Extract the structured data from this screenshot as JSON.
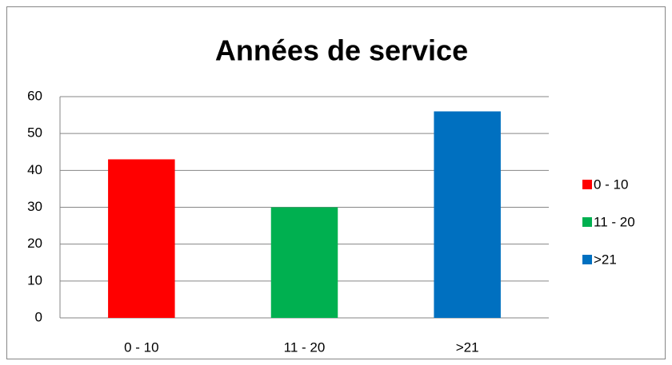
{
  "chart_data": {
    "type": "bar",
    "title": "Années de service",
    "categories": [
      "0 - 10",
      "11 - 20",
      ">21"
    ],
    "values": [
      43,
      30,
      56
    ],
    "colors": [
      "#ff0000",
      "#00b050",
      "#0070c0"
    ],
    "ylim": [
      0,
      60
    ],
    "yticks": [
      0,
      10,
      20,
      30,
      40,
      50,
      60
    ],
    "grid": true,
    "legend": "right"
  }
}
